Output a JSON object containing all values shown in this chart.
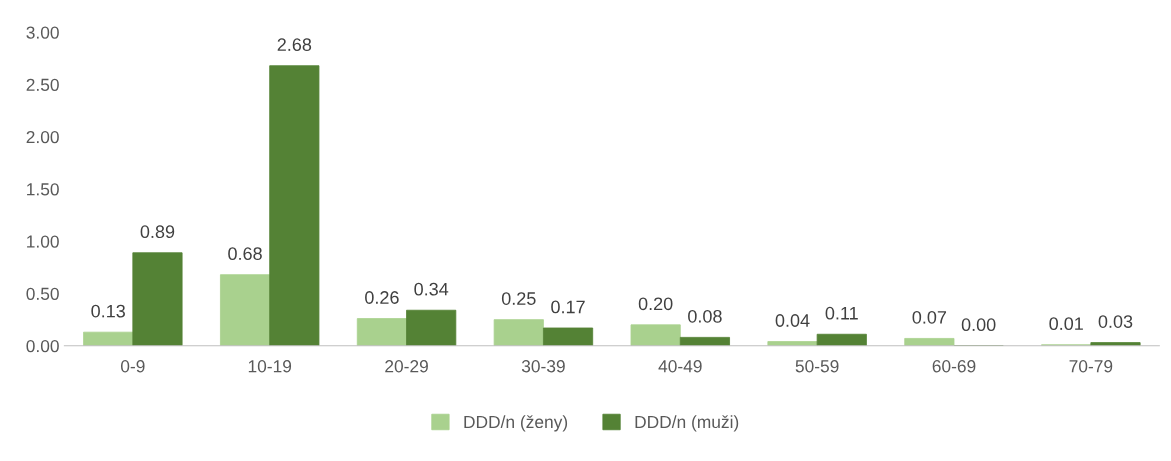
{
  "chart_data": {
    "type": "bar",
    "categories": [
      "0-9",
      "10-19",
      "20-29",
      "30-39",
      "40-49",
      "50-59",
      "60-69",
      "70-79"
    ],
    "series": [
      {
        "name": "DDD/n (ženy)",
        "color": "#a9d18e",
        "values": [
          0.13,
          0.68,
          0.26,
          0.25,
          0.2,
          0.04,
          0.07,
          0.01
        ],
        "value_labels": [
          "0.13",
          "0.68",
          "0.26",
          "0.25",
          "0.20",
          "0.04",
          "0.07",
          "0.01"
        ]
      },
      {
        "name": "DDD/n (muži)",
        "color": "#548235",
        "values": [
          0.89,
          2.68,
          0.34,
          0.17,
          0.08,
          0.11,
          0.0,
          0.03
        ],
        "value_labels": [
          "0.89",
          "2.68",
          "0.34",
          "0.17",
          "0.08",
          "0.11",
          "0.00",
          "0.03"
        ]
      }
    ],
    "ylim": [
      0,
      3
    ],
    "yticks": [
      {
        "value": 0,
        "label": "0.00"
      },
      {
        "value": 0.5,
        "label": "0.50"
      },
      {
        "value": 1,
        "label": "1.00"
      },
      {
        "value": 1.5,
        "label": "1.50"
      },
      {
        "value": 2,
        "label": "2.00"
      },
      {
        "value": 2.5,
        "label": "2.50"
      },
      {
        "value": 3,
        "label": "3.00"
      }
    ],
    "grid": false,
    "legend": "bottom"
  }
}
